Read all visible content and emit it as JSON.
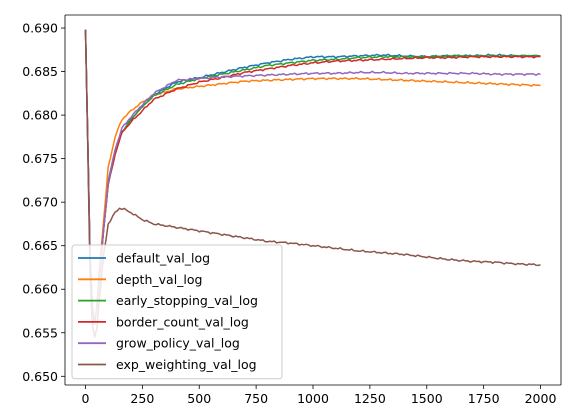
{
  "chart_data": {
    "type": "line",
    "title": "",
    "xlabel": "",
    "ylabel": "",
    "xlim": [
      -90,
      2090
    ],
    "ylim": [
      0.649,
      0.6915
    ],
    "xticks": [
      0,
      250,
      500,
      750,
      1000,
      1250,
      1500,
      1750,
      2000
    ],
    "xtick_labels": [
      "0",
      "250",
      "500",
      "750",
      "1000",
      "1250",
      "1500",
      "1750",
      "2000"
    ],
    "yticks": [
      0.65,
      0.655,
      0.66,
      0.665,
      0.67,
      0.675,
      0.68,
      0.685,
      0.69
    ],
    "ytick_labels": [
      "0.650",
      "0.655",
      "0.660",
      "0.665",
      "0.670",
      "0.675",
      "0.680",
      "0.685",
      "0.690"
    ],
    "grid": false,
    "legend_position": "lower-left",
    "series": [
      {
        "name": "default_val_log",
        "color": "#1f77b4",
        "x": [
          0,
          10,
          20,
          30,
          40,
          50,
          60,
          80,
          100,
          130,
          160,
          200,
          250,
          300,
          400,
          500,
          600,
          700,
          800,
          900,
          1000,
          1100,
          1200,
          1300,
          1400,
          1500,
          1600,
          1700,
          1800,
          1900,
          2000
        ],
        "y": [
          0.6898,
          0.677,
          0.664,
          0.658,
          0.656,
          0.658,
          0.661,
          0.667,
          0.6725,
          0.676,
          0.678,
          0.6795,
          0.681,
          0.6823,
          0.6838,
          0.6843,
          0.6849,
          0.6855,
          0.686,
          0.6864,
          0.6867,
          0.6867,
          0.6868,
          0.6869,
          0.6868,
          0.6867,
          0.6868,
          0.6868,
          0.6869,
          0.6868,
          0.6868
        ]
      },
      {
        "name": "depth_val_log",
        "color": "#ff7f0e",
        "x": [
          0,
          10,
          20,
          30,
          40,
          50,
          60,
          80,
          100,
          130,
          160,
          200,
          250,
          300,
          400,
          500,
          600,
          700,
          800,
          900,
          1000,
          1100,
          1200,
          1300,
          1400,
          1500,
          1600,
          1700,
          1800,
          1900,
          2000
        ],
        "y": [
          0.6898,
          0.677,
          0.664,
          0.658,
          0.656,
          0.658,
          0.662,
          0.668,
          0.674,
          0.6775,
          0.6795,
          0.6805,
          0.6815,
          0.6823,
          0.683,
          0.6833,
          0.6836,
          0.6839,
          0.684,
          0.6841,
          0.6842,
          0.6842,
          0.6842,
          0.6841,
          0.684,
          0.6839,
          0.6838,
          0.6837,
          0.6836,
          0.6835,
          0.6834
        ]
      },
      {
        "name": "early_stopping_val_log",
        "color": "#2ca02c",
        "x": [
          0,
          10,
          20,
          30,
          40,
          50,
          60,
          80,
          100,
          130,
          160,
          200,
          250,
          300,
          400,
          500,
          600,
          700,
          800,
          900,
          1000,
          1100,
          1200,
          1300,
          1400,
          1500,
          1600,
          1700,
          1800,
          1900,
          2000
        ],
        "y": [
          0.6898,
          0.677,
          0.664,
          0.658,
          0.656,
          0.658,
          0.661,
          0.667,
          0.672,
          0.6755,
          0.678,
          0.6795,
          0.681,
          0.6822,
          0.6835,
          0.6842,
          0.6847,
          0.6852,
          0.6857,
          0.686,
          0.6863,
          0.6864,
          0.6866,
          0.6867,
          0.6867,
          0.6867,
          0.6868,
          0.6868,
          0.6868,
          0.6868,
          0.6868
        ]
      },
      {
        "name": "border_count_val_log",
        "color": "#d62728",
        "x": [
          0,
          10,
          20,
          30,
          40,
          50,
          60,
          80,
          100,
          130,
          160,
          200,
          250,
          300,
          400,
          500,
          600,
          700,
          800,
          900,
          1000,
          1100,
          1200,
          1300,
          1400,
          1500,
          1600,
          1700,
          1800,
          1900,
          2000
        ],
        "y": [
          0.6898,
          0.677,
          0.664,
          0.658,
          0.656,
          0.658,
          0.661,
          0.667,
          0.672,
          0.6755,
          0.678,
          0.6792,
          0.6805,
          0.6818,
          0.683,
          0.6838,
          0.6843,
          0.6849,
          0.6853,
          0.6857,
          0.686,
          0.6862,
          0.6863,
          0.6864,
          0.6865,
          0.6866,
          0.6866,
          0.6867,
          0.6867,
          0.6867,
          0.6867
        ]
      },
      {
        "name": "grow_policy_val_log",
        "color": "#9467bd",
        "x": [
          0,
          10,
          20,
          30,
          40,
          50,
          60,
          80,
          100,
          130,
          160,
          200,
          250,
          300,
          400,
          500,
          600,
          700,
          800,
          900,
          1000,
          1100,
          1200,
          1300,
          1400,
          1500,
          1600,
          1700,
          1800,
          1900,
          2000
        ],
        "y": [
          0.6898,
          0.677,
          0.664,
          0.658,
          0.656,
          0.658,
          0.661,
          0.667,
          0.6722,
          0.676,
          0.6785,
          0.6798,
          0.6812,
          0.6825,
          0.684,
          0.6842,
          0.6844,
          0.6845,
          0.6846,
          0.6847,
          0.6848,
          0.6848,
          0.6849,
          0.6849,
          0.6848,
          0.6848,
          0.6848,
          0.6848,
          0.6847,
          0.6847,
          0.6847
        ]
      },
      {
        "name": "exp_weighting_val_log",
        "color": "#8c564b",
        "x": [
          0,
          10,
          20,
          30,
          40,
          50,
          60,
          80,
          100,
          130,
          150,
          170,
          200,
          250,
          300,
          400,
          500,
          600,
          700,
          800,
          900,
          1000,
          1100,
          1200,
          1300,
          1400,
          1500,
          1600,
          1700,
          1800,
          1900,
          2000
        ],
        "y": [
          0.6898,
          0.676,
          0.662,
          0.656,
          0.6545,
          0.6555,
          0.6585,
          0.664,
          0.6675,
          0.6688,
          0.6693,
          0.6692,
          0.6688,
          0.668,
          0.6675,
          0.6671,
          0.6667,
          0.6663,
          0.6659,
          0.6655,
          0.6653,
          0.665,
          0.6647,
          0.6644,
          0.6642,
          0.664,
          0.6637,
          0.6634,
          0.6632,
          0.6631,
          0.6629,
          0.6628
        ]
      }
    ]
  }
}
